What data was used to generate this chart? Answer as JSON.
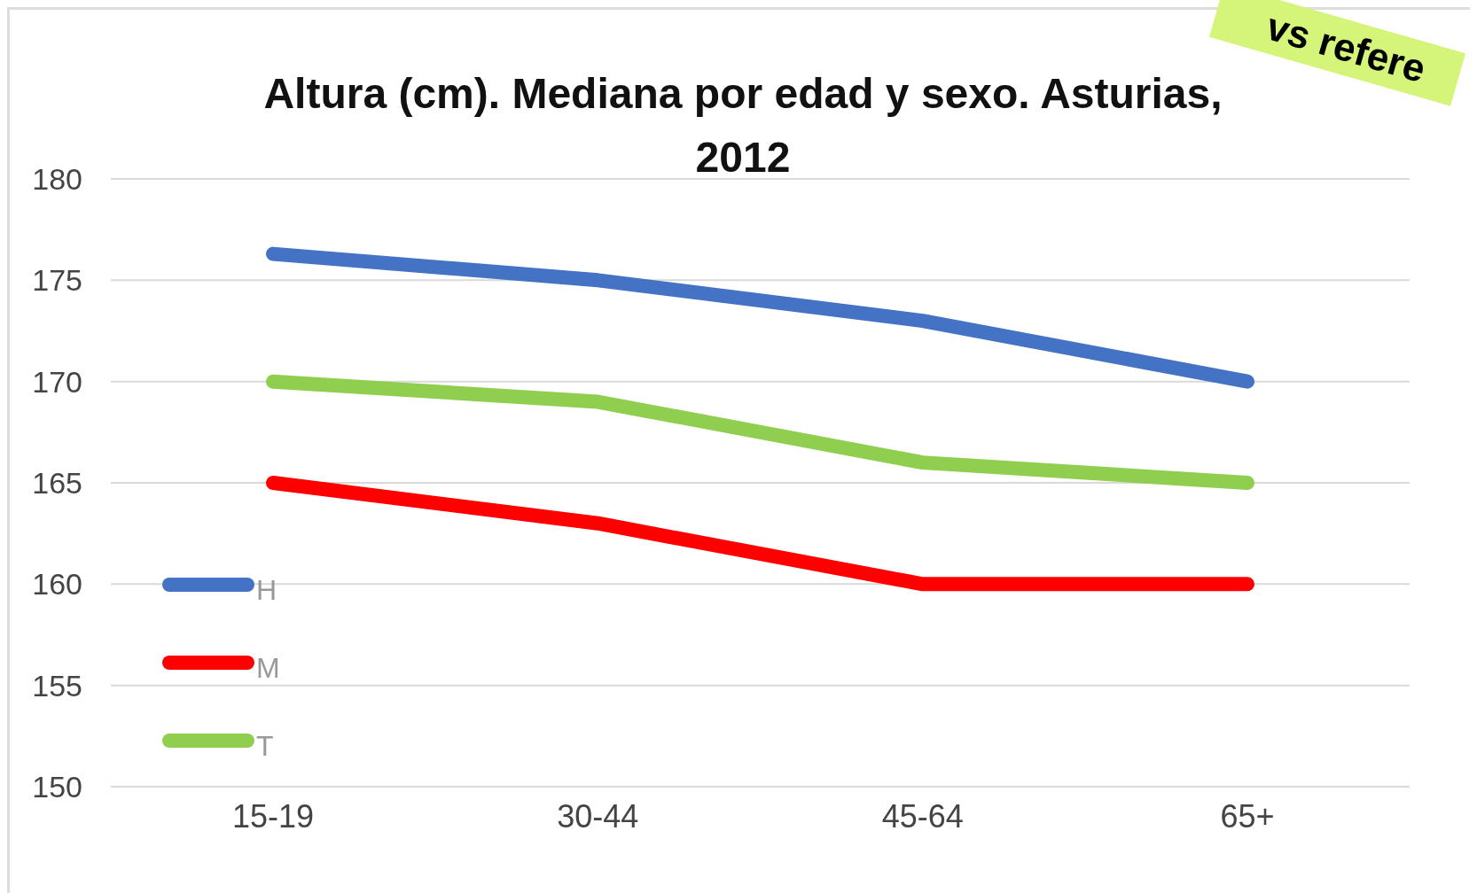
{
  "chart_data": {
    "type": "line",
    "title": "Altura (cm). Mediana por edad y sexo. Asturias, 2012",
    "categories": [
      "15-19",
      "30-44",
      "45-64",
      "65+"
    ],
    "series": [
      {
        "name": "H",
        "color": "#4472c4",
        "values": [
          176.3,
          175,
          173,
          170
        ]
      },
      {
        "name": "M",
        "color": "#ff0000",
        "values": [
          165,
          163,
          160,
          160
        ]
      },
      {
        "name": "T",
        "color": "#8fce4f",
        "values": [
          170,
          169,
          166,
          165
        ]
      }
    ],
    "ylim": [
      150,
      180
    ],
    "yticks": [
      150,
      155,
      160,
      165,
      170,
      175,
      180
    ],
    "grid": "y",
    "legend": "bottom left",
    "marker": "none",
    "line_style": "solid",
    "annotations": [
      "vs refere"
    ]
  }
}
